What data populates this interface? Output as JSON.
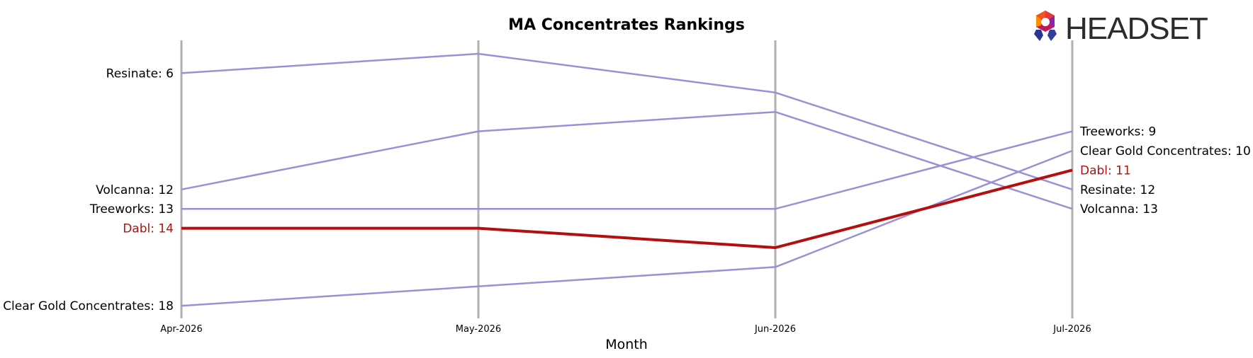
{
  "chart_data": {
    "type": "line",
    "title": "MA Concentrates Rankings",
    "xlabel": "Month",
    "ylabel": "",
    "x": [
      "Apr-2026",
      "May-2026",
      "Jun-2026",
      "Jul-2026"
    ],
    "y_inverted": true,
    "ylim": [
      19,
      5
    ],
    "grid": "vertical",
    "highlight": "Dabl",
    "series": [
      {
        "name": "Resinate",
        "values": [
          6,
          5,
          7,
          12
        ],
        "color": "#9b8fd6",
        "start_label": "Resinate: 6",
        "end_label": "Resinate: 12"
      },
      {
        "name": "Volcanna",
        "values": [
          12,
          9,
          8,
          13
        ],
        "color": "#9b8fd6",
        "start_label": "Volcanna: 12",
        "end_label": "Volcanna: 13"
      },
      {
        "name": "Treeworks",
        "values": [
          13,
          13,
          13,
          9
        ],
        "color": "#9b8fd6",
        "start_label": "Treeworks: 13",
        "end_label": "Treeworks: 9"
      },
      {
        "name": "Dabl",
        "values": [
          14,
          14,
          15,
          11
        ],
        "color": "#b30f0f",
        "start_label": "Dabl: 14",
        "end_label": "Dabl: 11"
      },
      {
        "name": "Clear Gold Concentrates",
        "values": [
          18,
          17,
          16,
          10
        ],
        "color": "#9b8fd6",
        "start_label": "Clear Gold Concentrates: 18",
        "end_label": "Clear Gold Concentrates: 10"
      }
    ]
  },
  "logo": {
    "text": "HEADSET"
  }
}
